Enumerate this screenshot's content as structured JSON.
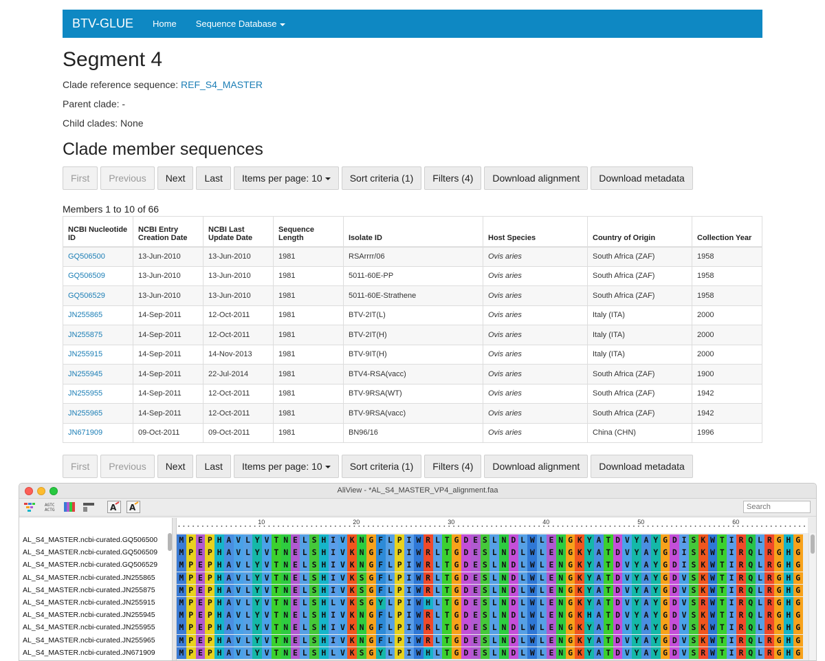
{
  "navbar": {
    "brand": "BTV-GLUE",
    "home": "Home",
    "sequence_database": "Sequence Database"
  },
  "page": {
    "title": "Segment 4",
    "clade_ref_label": "Clade reference sequence:",
    "clade_ref_link": "REF_S4_MASTER",
    "parent_clade": "Parent clade: -",
    "child_clades": "Child clades: None",
    "members_title": "Clade member sequences",
    "members_count": "Members 1 to 10 of 66"
  },
  "pager": {
    "first": "First",
    "previous": "Previous",
    "next": "Next",
    "last": "Last",
    "items_per_page": "Items per page: 10",
    "sort_criteria": "Sort criteria (1)",
    "filters": "Filters (4)",
    "download_alignment": "Download alignment",
    "download_metadata": "Download metadata"
  },
  "table": {
    "headers": {
      "ncbi_id": "NCBI Nucleotide ID",
      "entry_date": "NCBI Entry Creation Date",
      "update_date": "NCBI Last Update Date",
      "seq_length": "Sequence Length",
      "isolate": "Isolate ID",
      "host": "Host Species",
      "country": "Country of Origin",
      "year": "Collection Year"
    },
    "rows": [
      {
        "id": "GQ506500",
        "created": "13-Jun-2010",
        "updated": "13-Jun-2010",
        "length": "1981",
        "isolate": "RSArrrr/06",
        "host": "Ovis aries",
        "country": "South Africa (ZAF)",
        "year": "1958"
      },
      {
        "id": "GQ506509",
        "created": "13-Jun-2010",
        "updated": "13-Jun-2010",
        "length": "1981",
        "isolate": "5011-60E-PP",
        "host": "Ovis aries",
        "country": "South Africa (ZAF)",
        "year": "1958"
      },
      {
        "id": "GQ506529",
        "created": "13-Jun-2010",
        "updated": "13-Jun-2010",
        "length": "1981",
        "isolate": "5011-60E-Strathene",
        "host": "Ovis aries",
        "country": "South Africa (ZAF)",
        "year": "1958"
      },
      {
        "id": "JN255865",
        "created": "14-Sep-2011",
        "updated": "12-Oct-2011",
        "length": "1981",
        "isolate": "BTV-2IT(L)",
        "host": "Ovis aries",
        "country": "Italy (ITA)",
        "year": "2000"
      },
      {
        "id": "JN255875",
        "created": "14-Sep-2011",
        "updated": "12-Oct-2011",
        "length": "1981",
        "isolate": "BTV-2IT(H)",
        "host": "Ovis aries",
        "country": "Italy (ITA)",
        "year": "2000"
      },
      {
        "id": "JN255915",
        "created": "14-Sep-2011",
        "updated": "14-Nov-2013",
        "length": "1981",
        "isolate": "BTV-9IT(H)",
        "host": "Ovis aries",
        "country": "Italy (ITA)",
        "year": "2000"
      },
      {
        "id": "JN255945",
        "created": "14-Sep-2011",
        "updated": "22-Jul-2014",
        "length": "1981",
        "isolate": "BTV4-RSA(vacc)",
        "host": "Ovis aries",
        "country": "South Africa (ZAF)",
        "year": "1900"
      },
      {
        "id": "JN255955",
        "created": "14-Sep-2011",
        "updated": "12-Oct-2011",
        "length": "1981",
        "isolate": "BTV-9RSA(WT)",
        "host": "Ovis aries",
        "country": "South Africa (ZAF)",
        "year": "1942"
      },
      {
        "id": "JN255965",
        "created": "14-Sep-2011",
        "updated": "12-Oct-2011",
        "length": "1981",
        "isolate": "BTV-9RSA(vacc)",
        "host": "Ovis aries",
        "country": "South Africa (ZAF)",
        "year": "1942"
      },
      {
        "id": "JN671909",
        "created": "09-Oct-2011",
        "updated": "09-Oct-2011",
        "length": "1981",
        "isolate": "BN96/16",
        "host": "Ovis aries",
        "country": "China (CHN)",
        "year": "1996"
      }
    ]
  },
  "aliview": {
    "window_title": "AliView - *AL_S4_MASTER_VP4_alignment.faa",
    "search_placeholder": "Search",
    "ruler_ticks": [
      "10",
      "20",
      "30",
      "40",
      "50",
      "60"
    ],
    "sequences": [
      {
        "name": "AL_S4_MASTER.ncbi-curated.GQ506500",
        "seq": "MPEPHAVLYVTNELSHIVKNGFLPIWRLTGDESLNDLWLENGKYATDVYAYGDISKWTIRQLRGHG"
      },
      {
        "name": "AL_S4_MASTER.ncbi-curated.GQ506509",
        "seq": "MPEPHAVLYVTNELSHIVKNGFLPIWRLTGDESLNDLWLENGKYATDVYAYGDISKWTIRQLRGHG"
      },
      {
        "name": "AL_S4_MASTER.ncbi-curated.GQ506529",
        "seq": "MPEPHAVLYVTNELSHIVKNGFLPIWRLTGDESLNDLWLENGKYATDVYAYGDISKWTIRQLRGHG"
      },
      {
        "name": "AL_S4_MASTER.ncbi-curated.JN255865",
        "seq": "MPEPHAVLYVTNELSHIVKSGFLPIWRLTGDESLNDLWLENGKYATDVYAYGDVSKWTIRQLRGHG"
      },
      {
        "name": "AL_S4_MASTER.ncbi-curated.JN255875",
        "seq": "MPEPHAVLYVTNELSHIVKSGFLPIWRLTGDESLNDLWLENGKYATDVYAYGDVSKWTIRQLRGHG"
      },
      {
        "name": "AL_S4_MASTER.ncbi-curated.JN255915",
        "seq": "MPEPHAVLYVTNELSHLVKSGYLPIWHLTGDESLNDLWLENGKYATDVYAYGDVSRWTIRQLRGHG"
      },
      {
        "name": "AL_S4_MASTER.ncbi-curated.JN255945",
        "seq": "MPEPHAVLYVTNELSHIVKNGFLPIWRLTGDESLNDLWLENGKHATDVYAYGDVSKWTIRQLRGHG"
      },
      {
        "name": "AL_S4_MASTER.ncbi-curated.JN255955",
        "seq": "MPEPHAVLYVTNELSHIVKNGFLPIWRLTGDESLNDLWLENGKYATDVYAYGDVSKWTIRQLRGHG"
      },
      {
        "name": "AL_S4_MASTER.ncbi-curated.JN255965",
        "seq": "MPEPHAVLYVTNELSHIVKNGFLPIWRLTGDESLNDLWLENGKYATDVYAYGDVSKWTIRQLRGHG"
      },
      {
        "name": "AL_S4_MASTER.ncbi-curated.JN671909",
        "seq": "MPEPHAVLYVTNELSHLVKSGYLPIWHLTGDESLNDLWLENGKYATDVYAYGDVSRWTIRQLRGHG"
      }
    ],
    "residue_colors": {
      "M": "#3a7bd5",
      "P": "#e8d21e",
      "E": "#b05ad0",
      "H": "#16b5c9",
      "A": "#4a8fe0",
      "V": "#4aa2e8",
      "L": "#56a0e5",
      "Y": "#15b8a8",
      "T": "#3bd02f",
      "N": "#2ecc40",
      "S": "#45c83a",
      "I": "#5a9de8",
      "K": "#f0561e",
      "G": "#f7a21b",
      "F": "#2d8bd8",
      "W": "#2f78d6",
      "R": "#f04a2a",
      "D": "#c44fd8",
      "Q": "#28c34a"
    }
  }
}
